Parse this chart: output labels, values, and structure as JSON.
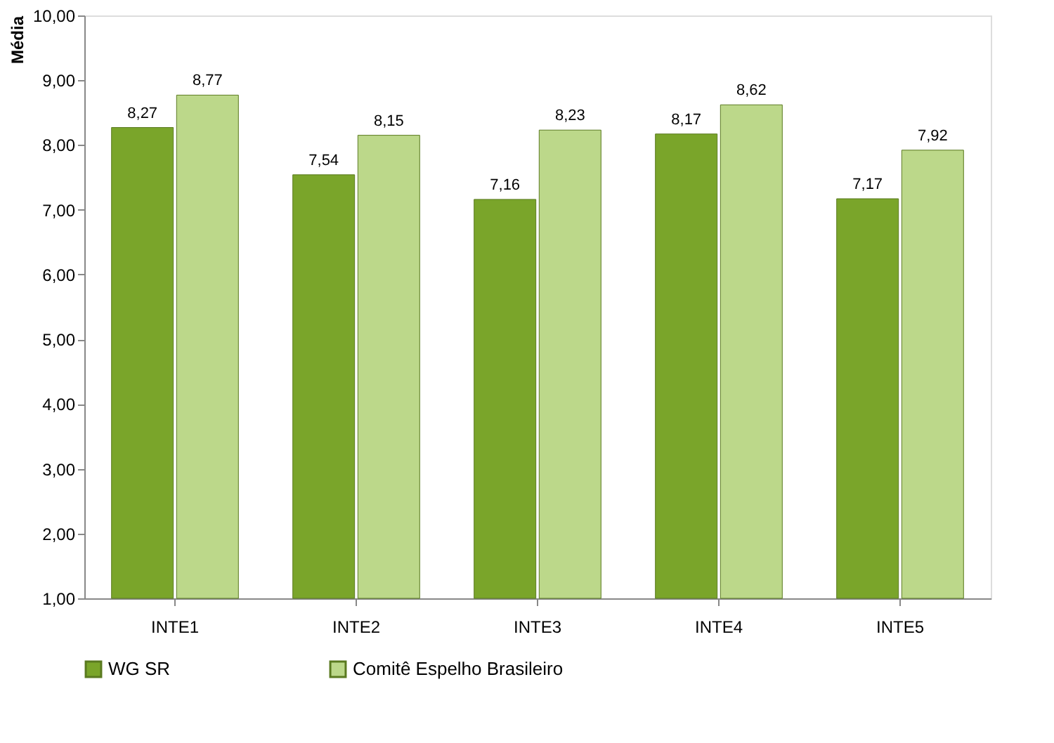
{
  "chart_data": {
    "type": "bar",
    "ylabel": "Média",
    "categories": [
      "INTE1",
      "INTE2",
      "INTE3",
      "INTE4",
      "INTE5"
    ],
    "series": [
      {
        "name": "WG SR",
        "color": "#7aa52a",
        "values": [
          8.27,
          7.54,
          7.16,
          8.17,
          7.17
        ],
        "value_labels": [
          "8,27",
          "7,54",
          "7,16",
          "8,17",
          "7,17"
        ]
      },
      {
        "name": "Comitê Espelho Brasileiro",
        "color": "#bcd88a",
        "values": [
          8.77,
          8.15,
          8.23,
          8.62,
          7.92
        ],
        "value_labels": [
          "8,77",
          "8,15",
          "8,23",
          "8,62",
          "7,92"
        ]
      }
    ],
    "ylim": [
      1,
      10
    ],
    "yticks": [
      {
        "value": 1,
        "label": "1,00"
      },
      {
        "value": 2,
        "label": "2,00"
      },
      {
        "value": 3,
        "label": "3,00"
      },
      {
        "value": 4,
        "label": "4,00"
      },
      {
        "value": 5,
        "label": "5,00"
      },
      {
        "value": 6,
        "label": "6,00"
      },
      {
        "value": 7,
        "label": "7,00"
      },
      {
        "value": 8,
        "label": "8,00"
      },
      {
        "value": 9,
        "label": "9,00"
      },
      {
        "value": 10,
        "label": "10,00"
      }
    ],
    "grid": false,
    "legend": "bottom"
  }
}
